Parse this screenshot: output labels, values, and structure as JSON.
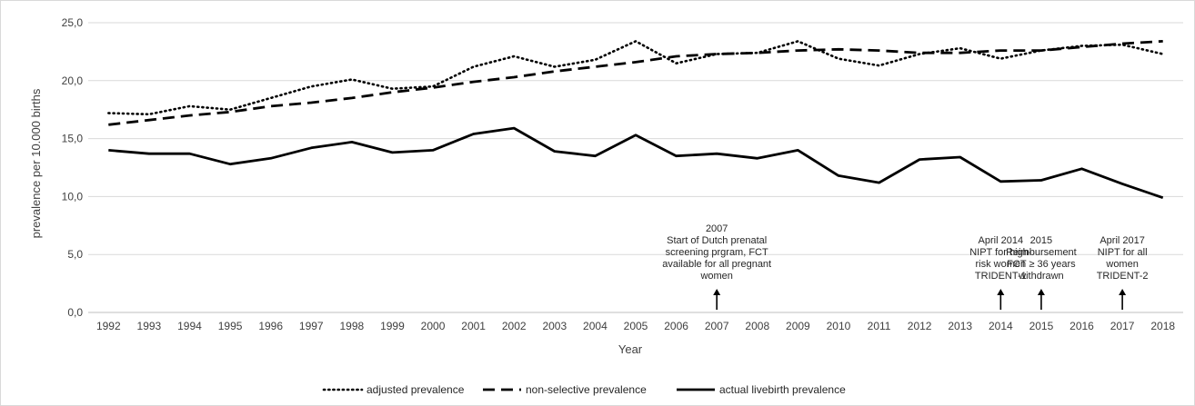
{
  "chart_data": {
    "type": "line",
    "x": [
      "1992",
      "1993",
      "1994",
      "1995",
      "1996",
      "1997",
      "1998",
      "1999",
      "2000",
      "2001",
      "2002",
      "2003",
      "2004",
      "2005",
      "2006",
      "2007",
      "2008",
      "2009",
      "2010",
      "2011",
      "2012",
      "2013",
      "2014",
      "2015",
      "2016",
      "2017",
      "2018"
    ],
    "xlabel": "Year",
    "ylabel": "prevalence per 10.000 births",
    "ylim": [
      0,
      25
    ],
    "yticks": [
      "0,0",
      "5,0",
      "10,0",
      "15,0",
      "20,0",
      "25,0"
    ],
    "grid": "horizontal",
    "legend_position": "bottom",
    "colors": {
      "line": "#000000",
      "grid": "#d9d9d9",
      "axis": "#bfbfbf",
      "text": "#404040"
    },
    "series": [
      {
        "name": "adjusted prevalence",
        "style": "dotted",
        "values": [
          17.2,
          17.1,
          17.8,
          17.5,
          18.5,
          19.5,
          20.1,
          19.3,
          19.5,
          21.2,
          22.1,
          21.2,
          21.8,
          23.4,
          21.5,
          22.3,
          22.4,
          23.4,
          21.9,
          21.3,
          22.3,
          22.8,
          21.9,
          22.6,
          23.0,
          23.1,
          22.3
        ]
      },
      {
        "name": "non-selective prevalence",
        "style": "dashed",
        "values": [
          16.2,
          16.6,
          17.0,
          17.3,
          17.8,
          18.1,
          18.5,
          19.0,
          19.4,
          19.9,
          20.3,
          20.8,
          21.2,
          21.6,
          22.1,
          22.3,
          22.4,
          22.6,
          22.7,
          22.6,
          22.4,
          22.4,
          22.6,
          22.6,
          22.9,
          23.2,
          23.4
        ]
      },
      {
        "name": "actual livebirth prevalence",
        "style": "solid",
        "values": [
          14.0,
          13.7,
          13.7,
          12.8,
          13.3,
          14.2,
          14.7,
          13.8,
          14.0,
          15.4,
          15.9,
          13.9,
          13.5,
          15.3,
          13.5,
          13.7,
          13.3,
          14.0,
          11.8,
          11.2,
          13.2,
          13.4,
          11.3,
          11.4,
          12.4,
          11.1,
          9.9
        ]
      }
    ],
    "annotations": [
      {
        "year": "2007",
        "lines": [
          "2007",
          "Start of Dutch prenatal",
          "screening prgram, FCT",
          "available for all pregnant",
          "women"
        ]
      },
      {
        "year": "2014",
        "lines": [
          "April 2014",
          "NIPT for high-",
          "risk women",
          "TRIDENT-1"
        ]
      },
      {
        "year": "2015",
        "lines": [
          "2015",
          "Reimbursement",
          "FCT ≥ 36 years",
          "withdrawn"
        ]
      },
      {
        "year": "2017",
        "lines": [
          "April 2017",
          "NIPT for all",
          "women",
          "TRIDENT-2"
        ]
      }
    ]
  }
}
